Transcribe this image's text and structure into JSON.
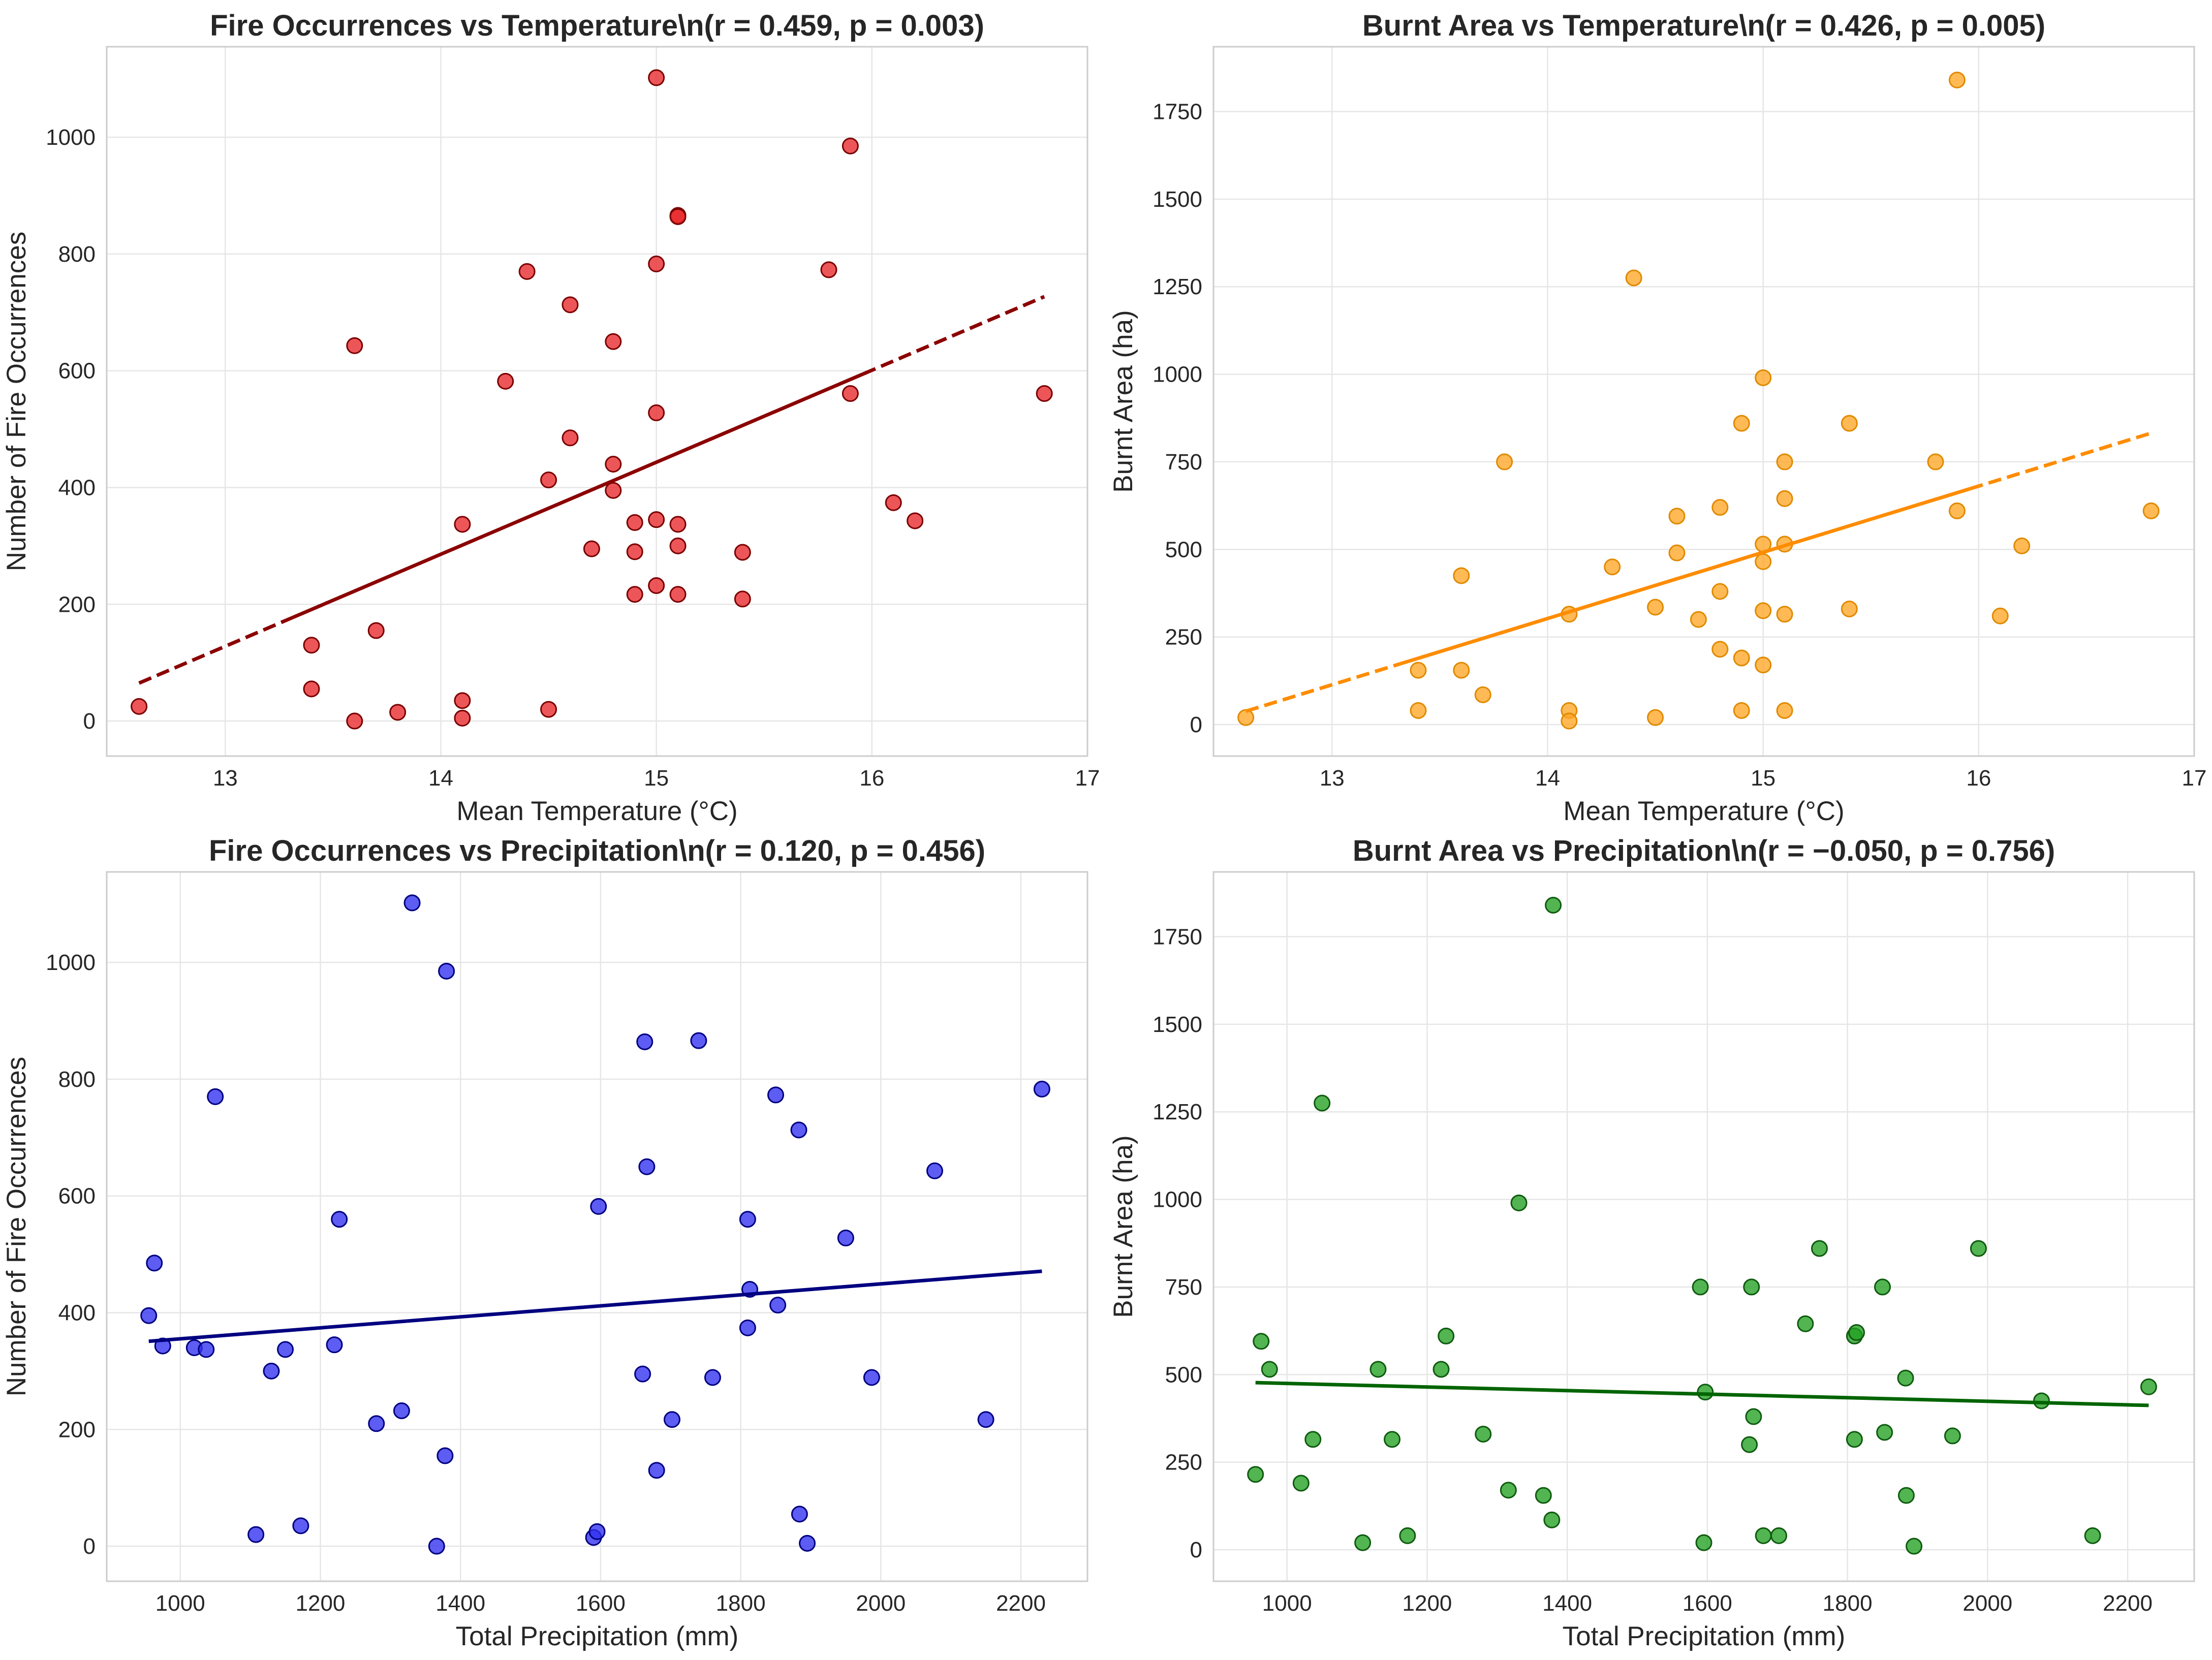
{
  "chart_data": [
    {
      "type": "scatter",
      "title": "Fire Occurrences vs Temperature\\n(r = 0.459, p = 0.003)",
      "xlabel": "Mean Temperature (°C)",
      "ylabel": "Number of Fire Occurrences",
      "xlim": [
        12.45,
        17.0
      ],
      "ylim": [
        -60,
        1155
      ],
      "xticks": [
        13,
        14,
        15,
        16,
        17
      ],
      "yticks": [
        0,
        200,
        400,
        600,
        800,
        1000
      ],
      "grid": true,
      "marker_color": "#e8262a",
      "marker_edge": "#7a0000",
      "trend": {
        "x0": 12.6,
        "x1": 16.8,
        "y0": 65,
        "y1": 727,
        "color": "#8b0000",
        "style": "dashed-solid"
      },
      "points": [
        [
          12.6,
          25
        ],
        [
          13.4,
          130
        ],
        [
          13.4,
          55
        ],
        [
          13.6,
          643
        ],
        [
          13.6,
          0
        ],
        [
          13.7,
          155
        ],
        [
          13.8,
          15
        ],
        [
          14.1,
          337
        ],
        [
          14.1,
          35
        ],
        [
          14.1,
          5
        ],
        [
          14.3,
          582
        ],
        [
          14.4,
          770
        ],
        [
          14.5,
          413
        ],
        [
          14.5,
          20
        ],
        [
          14.6,
          713
        ],
        [
          14.6,
          485
        ],
        [
          14.7,
          295
        ],
        [
          14.8,
          650
        ],
        [
          14.8,
          440
        ],
        [
          14.8,
          395
        ],
        [
          14.9,
          340
        ],
        [
          14.9,
          290
        ],
        [
          14.9,
          217
        ],
        [
          15.0,
          1102
        ],
        [
          15.0,
          783
        ],
        [
          15.0,
          528
        ],
        [
          15.0,
          345
        ],
        [
          15.0,
          232
        ],
        [
          15.1,
          866
        ],
        [
          15.1,
          864
        ],
        [
          15.1,
          337
        ],
        [
          15.1,
          300
        ],
        [
          15.1,
          217
        ],
        [
          15.4,
          289
        ],
        [
          15.4,
          209
        ],
        [
          15.8,
          773
        ],
        [
          15.9,
          985
        ],
        [
          15.9,
          561
        ],
        [
          16.1,
          374
        ],
        [
          16.2,
          343
        ],
        [
          16.8,
          561
        ]
      ]
    },
    {
      "type": "scatter",
      "title": "Burnt Area vs Temperature\\n(r = 0.426, p = 0.005)",
      "xlabel": "Mean Temperature (°C)",
      "ylabel": "Burnt Area (ha)",
      "xlim": [
        12.45,
        17.0
      ],
      "ylim": [
        -90,
        1935
      ],
      "xticks": [
        13,
        14,
        15,
        16,
        17
      ],
      "yticks": [
        0,
        250,
        500,
        750,
        1000,
        1250,
        1500,
        1750
      ],
      "grid": true,
      "marker_color": "#ffa726",
      "marker_edge": "#e08a00",
      "trend": {
        "x0": 12.6,
        "x1": 16.8,
        "y0": 38,
        "y1": 832,
        "color": "#ff8c00",
        "style": "dashed-solid"
      },
      "points": [
        [
          12.6,
          20
        ],
        [
          13.4,
          155
        ],
        [
          13.4,
          40
        ],
        [
          13.6,
          425
        ],
        [
          13.6,
          155
        ],
        [
          13.7,
          85
        ],
        [
          13.8,
          750
        ],
        [
          14.1,
          315
        ],
        [
          14.1,
          40
        ],
        [
          14.1,
          10
        ],
        [
          14.3,
          450
        ],
        [
          14.4,
          1275
        ],
        [
          14.5,
          335
        ],
        [
          14.5,
          20
        ],
        [
          14.6,
          595
        ],
        [
          14.6,
          490
        ],
        [
          14.7,
          300
        ],
        [
          14.8,
          620
        ],
        [
          14.8,
          380
        ],
        [
          14.8,
          215
        ],
        [
          14.9,
          860
        ],
        [
          14.9,
          190
        ],
        [
          14.9,
          40
        ],
        [
          15.0,
          990
        ],
        [
          15.0,
          515
        ],
        [
          15.0,
          465
        ],
        [
          15.0,
          325
        ],
        [
          15.0,
          170
        ],
        [
          15.1,
          750
        ],
        [
          15.1,
          645
        ],
        [
          15.1,
          515
        ],
        [
          15.1,
          315
        ],
        [
          15.1,
          40
        ],
        [
          15.4,
          860
        ],
        [
          15.4,
          330
        ],
        [
          15.8,
          750
        ],
        [
          15.9,
          1840
        ],
        [
          15.9,
          610
        ],
        [
          16.1,
          310
        ],
        [
          16.2,
          510
        ],
        [
          16.8,
          610
        ]
      ]
    },
    {
      "type": "scatter",
      "title": "Fire Occurrences vs Precipitation\\n(r = 0.120, p = 0.456)",
      "xlabel": "Total Precipitation (mm)",
      "ylabel": "Number of Fire Occurrences",
      "xlim": [
        895,
        2295
      ],
      "ylim": [
        -60,
        1155
      ],
      "xticks": [
        1000,
        1200,
        1400,
        1600,
        1800,
        2000,
        2200
      ],
      "yticks": [
        0,
        200,
        400,
        600,
        800,
        1000
      ],
      "grid": true,
      "marker_color": "#2f2ff0",
      "marker_edge": "#000080",
      "trend": {
        "x0": 955,
        "x1": 2230,
        "y0": 351,
        "y1": 471,
        "color": "#000080",
        "style": "solid"
      },
      "points": [
        [
          955,
          395
        ],
        [
          963,
          485
        ],
        [
          975,
          343
        ],
        [
          1020,
          340
        ],
        [
          1037,
          337
        ],
        [
          1050,
          770
        ],
        [
          1108,
          20
        ],
        [
          1130,
          300
        ],
        [
          1150,
          337
        ],
        [
          1172,
          35
        ],
        [
          1220,
          345
        ],
        [
          1227,
          560
        ],
        [
          1280,
          210
        ],
        [
          1316,
          232
        ],
        [
          1331,
          1102
        ],
        [
          1366,
          0
        ],
        [
          1378,
          155
        ],
        [
          1380,
          985
        ],
        [
          1590,
          15
        ],
        [
          1595,
          25
        ],
        [
          1597,
          582
        ],
        [
          1660,
          295
        ],
        [
          1663,
          864
        ],
        [
          1666,
          650
        ],
        [
          1680,
          130
        ],
        [
          1702,
          217
        ],
        [
          1740,
          866
        ],
        [
          1760,
          289
        ],
        [
          1810,
          374
        ],
        [
          1810,
          560
        ],
        [
          1813,
          440
        ],
        [
          1850,
          773
        ],
        [
          1853,
          413
        ],
        [
          1883,
          713
        ],
        [
          1884,
          55
        ],
        [
          1895,
          5
        ],
        [
          1950,
          528
        ],
        [
          1987,
          289
        ],
        [
          2077,
          643
        ],
        [
          2150,
          217
        ],
        [
          2230,
          783
        ]
      ]
    },
    {
      "type": "scatter",
      "title": "Burnt Area vs Precipitation\\n(r = −0.050, p = 0.756)",
      "xlabel": "Total Precipitation (mm)",
      "ylabel": "Burnt Area (ha)",
      "xlim": [
        895,
        2295
      ],
      "ylim": [
        -90,
        1935
      ],
      "xticks": [
        1000,
        1200,
        1400,
        1600,
        1800,
        2000,
        2200
      ],
      "yticks": [
        0,
        250,
        500,
        750,
        1000,
        1250,
        1500,
        1750
      ],
      "grid": true,
      "marker_color": "#21a021",
      "marker_edge": "#0f5a0f",
      "trend": {
        "x0": 955,
        "x1": 2230,
        "y0": 477,
        "y1": 412,
        "color": "#006400",
        "style": "solid"
      },
      "points": [
        [
          955,
          215
        ],
        [
          963,
          595
        ],
        [
          975,
          515
        ],
        [
          1020,
          190
        ],
        [
          1037,
          315
        ],
        [
          1050,
          1275
        ],
        [
          1108,
          20
        ],
        [
          1130,
          515
        ],
        [
          1150,
          315
        ],
        [
          1172,
          40
        ],
        [
          1220,
          515
        ],
        [
          1227,
          610
        ],
        [
          1280,
          330
        ],
        [
          1316,
          170
        ],
        [
          1331,
          990
        ],
        [
          1366,
          155
        ],
        [
          1378,
          85
        ],
        [
          1380,
          1840
        ],
        [
          1590,
          750
        ],
        [
          1595,
          20
        ],
        [
          1597,
          450
        ],
        [
          1660,
          300
        ],
        [
          1663,
          750
        ],
        [
          1666,
          380
        ],
        [
          1680,
          40
        ],
        [
          1702,
          40
        ],
        [
          1740,
          645
        ],
        [
          1760,
          860
        ],
        [
          1810,
          315
        ],
        [
          1810,
          610
        ],
        [
          1813,
          620
        ],
        [
          1850,
          750
        ],
        [
          1853,
          335
        ],
        [
          1883,
          490
        ],
        [
          1884,
          155
        ],
        [
          1895,
          10
        ],
        [
          1950,
          325
        ],
        [
          1987,
          860
        ],
        [
          2077,
          425
        ],
        [
          2150,
          40
        ],
        [
          2230,
          465
        ]
      ]
    }
  ]
}
